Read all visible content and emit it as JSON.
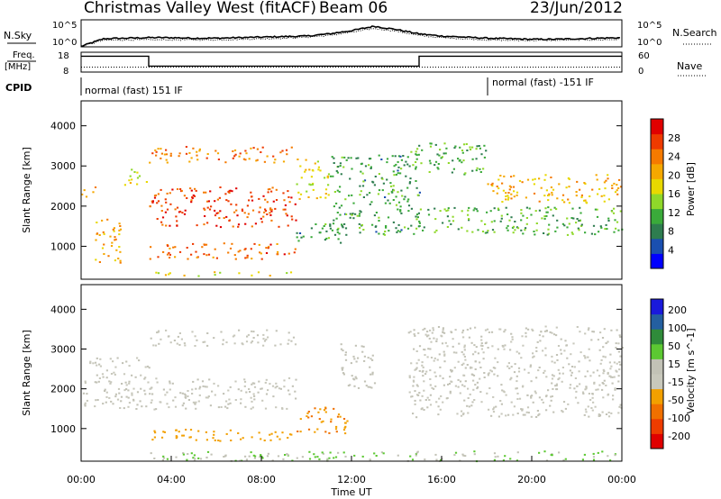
{
  "header": {
    "radar": "Christmas Valley West (fitACF)",
    "beam": "Beam 06",
    "date": "23/Jun/2012"
  },
  "top_panel": {
    "left_label": "N.Sky",
    "left_ticks": [
      "10^5",
      "10^0"
    ],
    "right_label": "N.Search",
    "right_ticks": [
      "10^5",
      "10^0"
    ]
  },
  "freq_panel": {
    "left_label_1": "Freq.",
    "left_label_2": "[MHz]",
    "left_ticks": [
      "18",
      "8"
    ],
    "right_label": "Nave",
    "right_ticks": [
      "60",
      "0"
    ]
  },
  "cpid": {
    "label": "CPID",
    "mode_1": "normal (fast) 151 IF",
    "mode_2": "normal (fast) -151 IF"
  },
  "colors": {
    "power_scale": [
      "#0000ff",
      "#1a4fb0",
      "#2e7d4f",
      "#3aaa3a",
      "#8fd82a",
      "#e8d800",
      "#f5a800",
      "#f57a00",
      "#ee3a00",
      "#e00000"
    ],
    "velocity_scale": [
      "#1a1adb",
      "#245fa0",
      "#2f8b3a",
      "#5cc832",
      "#c2c2b6",
      "#c8c8bc",
      "#f2a000",
      "#f07000",
      "#ee3c00",
      "#e00000"
    ]
  },
  "chart_data": [
    {
      "type": "line",
      "panel": "noise",
      "xlabel": "",
      "ylabel": "N.Sky",
      "ylim_log10": [
        0,
        5
      ],
      "x_hours": [
        0,
        1,
        2,
        3,
        4,
        5,
        6,
        7,
        8,
        9,
        10,
        11,
        12,
        13,
        14,
        15,
        16,
        17,
        18,
        19,
        20,
        21,
        22,
        23,
        24
      ],
      "series": [
        {
          "name": "N.Sky",
          "values": [
            0.1,
            1.5,
            1.6,
            1.7,
            1.7,
            1.6,
            1.6,
            1.7,
            1.8,
            1.9,
            2.0,
            2.4,
            3.0,
            3.8,
            3.2,
            2.4,
            2.0,
            1.8,
            1.6,
            1.5,
            1.4,
            1.4,
            1.5,
            1.6,
            1.7
          ]
        },
        {
          "name": "N.Search",
          "values": [
            0.1,
            1.2,
            1.3,
            1.3,
            1.3,
            1.3,
            1.3,
            1.4,
            1.5,
            1.6,
            1.8,
            2.1,
            2.7,
            3.4,
            2.9,
            2.1,
            1.7,
            1.5,
            1.3,
            1.2,
            1.2,
            1.2,
            1.3,
            1.3,
            1.4
          ]
        }
      ]
    },
    {
      "type": "line",
      "panel": "frequency",
      "ylabel": "Freq. [MHz]",
      "ylim": [
        8,
        18
      ],
      "y2label": "Nave",
      "y2lim": [
        0,
        60
      ],
      "series": [
        {
          "name": "Freq.",
          "x": [
            0,
            3,
            3,
            15,
            15,
            24
          ],
          "values": [
            16,
            16,
            11,
            11,
            16,
            16
          ]
        },
        {
          "name": "Nave",
          "x": [
            0,
            24
          ],
          "values": [
            15,
            15
          ]
        }
      ]
    },
    {
      "type": "heatmap",
      "panel": "power",
      "ylabel": "Slant Range [km]",
      "ylim": [
        180,
        4620
      ],
      "yticks": [
        1000,
        2000,
        3000,
        4000
      ],
      "colorbar_label": "Power [dB]",
      "colorbar_ticks": [
        4,
        8,
        12,
        16,
        20,
        24,
        28
      ],
      "clim": [
        0,
        32
      ],
      "features": [
        {
          "t": [
            0.0,
            0.6
          ],
          "range": [
            2220,
            2520
          ],
          "value": 20
        },
        {
          "t": [
            0.5,
            1.8
          ],
          "range": [
            600,
            1700
          ],
          "value": 20
        },
        {
          "t": [
            1.9,
            3.0
          ],
          "range": [
            2550,
            3000
          ],
          "value": 17
        },
        {
          "t": [
            3.0,
            9.5
          ],
          "range": [
            3100,
            3500
          ],
          "value": 24
        },
        {
          "t": [
            3.0,
            9.5
          ],
          "range": [
            1500,
            2500
          ],
          "value": 27
        },
        {
          "t": [
            3.0,
            9.5
          ],
          "range": [
            700,
            1100
          ],
          "value": 25
        },
        {
          "t": [
            3.0,
            9.5
          ],
          "range": [
            280,
            380
          ],
          "value": 18
        },
        {
          "t": [
            9.5,
            11.0
          ],
          "range": [
            2200,
            3200
          ],
          "value": 18
        },
        {
          "t": [
            9.5,
            11.8
          ],
          "range": [
            1100,
            1600
          ],
          "value": 10
        },
        {
          "t": [
            11.0,
            15.0
          ],
          "range": [
            1300,
            3300
          ],
          "value": 10
        },
        {
          "t": [
            14.5,
            18.0
          ],
          "range": [
            2800,
            3600
          ],
          "value": 12
        },
        {
          "t": [
            14.8,
            24.0
          ],
          "range": [
            1300,
            2000
          ],
          "value": 12
        },
        {
          "t": [
            18.0,
            24.0
          ],
          "range": [
            2100,
            2800
          ],
          "value": 20
        }
      ]
    },
    {
      "type": "heatmap",
      "panel": "velocity",
      "xlabel": "Time UT",
      "ylabel": "Slant Range [km]",
      "ylim": [
        180,
        4620
      ],
      "yticks": [
        1000,
        2000,
        3000,
        4000
      ],
      "xticks": [
        "00:00",
        "04:00",
        "08:00",
        "12:00",
        "16:00",
        "20:00",
        "00:00"
      ],
      "colorbar_label": "Velocity [m s^-1]",
      "colorbar_ticks": [
        200,
        100,
        50,
        15,
        -15,
        -50,
        -100,
        -200
      ],
      "features": [
        {
          "t": [
            0.0,
            3.0
          ],
          "range": [
            1500,
            2800
          ],
          "value": 0
        },
        {
          "t": [
            3.0,
            9.5
          ],
          "range": [
            3100,
            3500
          ],
          "value": 0
        },
        {
          "t": [
            3.0,
            9.5
          ],
          "range": [
            1500,
            2300
          ],
          "value": 0
        },
        {
          "t": [
            3.0,
            9.5
          ],
          "range": [
            700,
            1000
          ],
          "value": -60
        },
        {
          "t": [
            9.5,
            11.8
          ],
          "range": [
            900,
            1600
          ],
          "value": -80
        },
        {
          "t": [
            11.5,
            13.0
          ],
          "range": [
            2000,
            3200
          ],
          "value": 30
        },
        {
          "t": [
            14.5,
            24.0
          ],
          "range": [
            1300,
            3600
          ],
          "value": 0
        },
        {
          "t": [
            3.0,
            24.0
          ],
          "range": [
            200,
            450
          ],
          "value": 40
        }
      ]
    }
  ]
}
